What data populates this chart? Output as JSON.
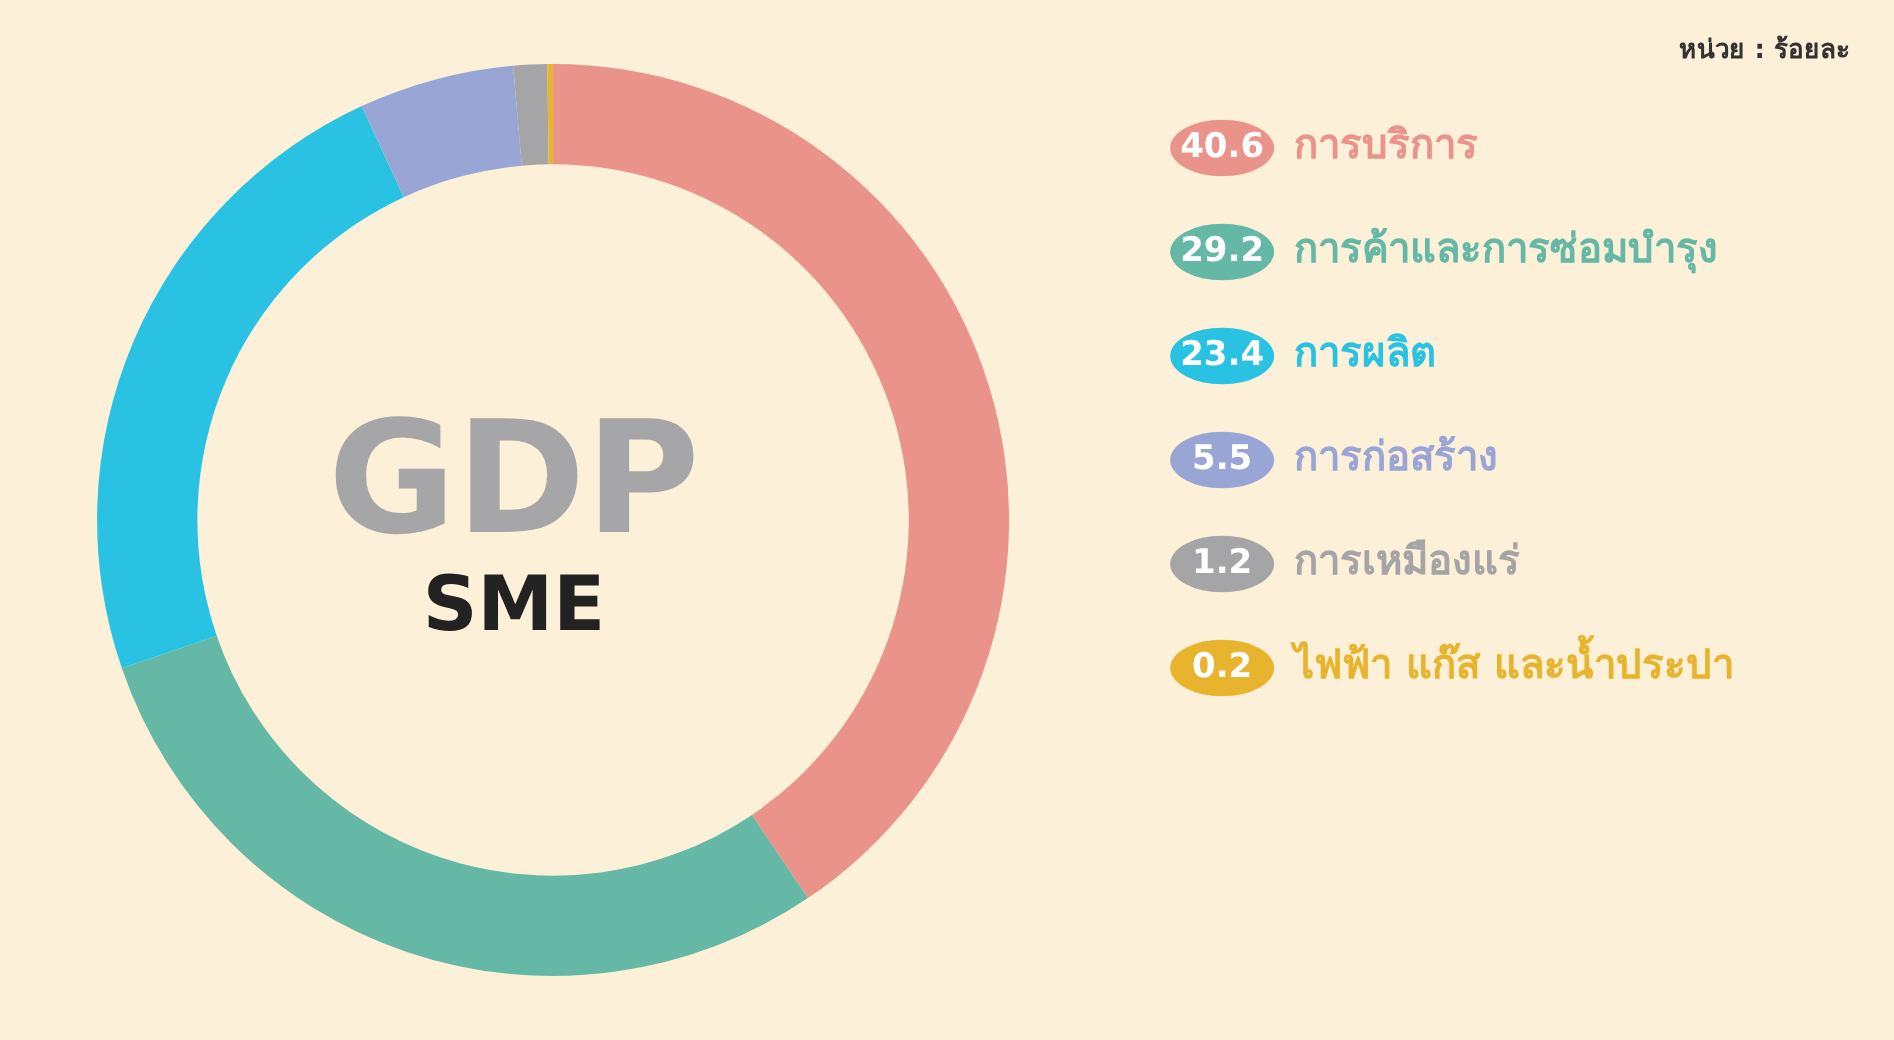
{
  "chart_data": {
    "type": "donut",
    "categories": [
      "การบริการ",
      "การค้าและการซ่อมบำรุง",
      "การผลิต",
      "การก่อสร้าง",
      "การเหมืองแร่",
      "ไฟฟ้า แก๊ส และน้ำประปา"
    ],
    "values": [
      40.6,
      29.2,
      23.4,
      5.5,
      1.2,
      0.2
    ],
    "colors": [
      "#ea938a",
      "#65b8a6",
      "#29c2e3",
      "#99a5d5",
      "#a5a5a7",
      "#e8b42e"
    ],
    "data_labels": true,
    "legend": "right",
    "annotations": [
      "GDP",
      "SME",
      "หน่วย : ร้อยละ"
    ]
  }
}
